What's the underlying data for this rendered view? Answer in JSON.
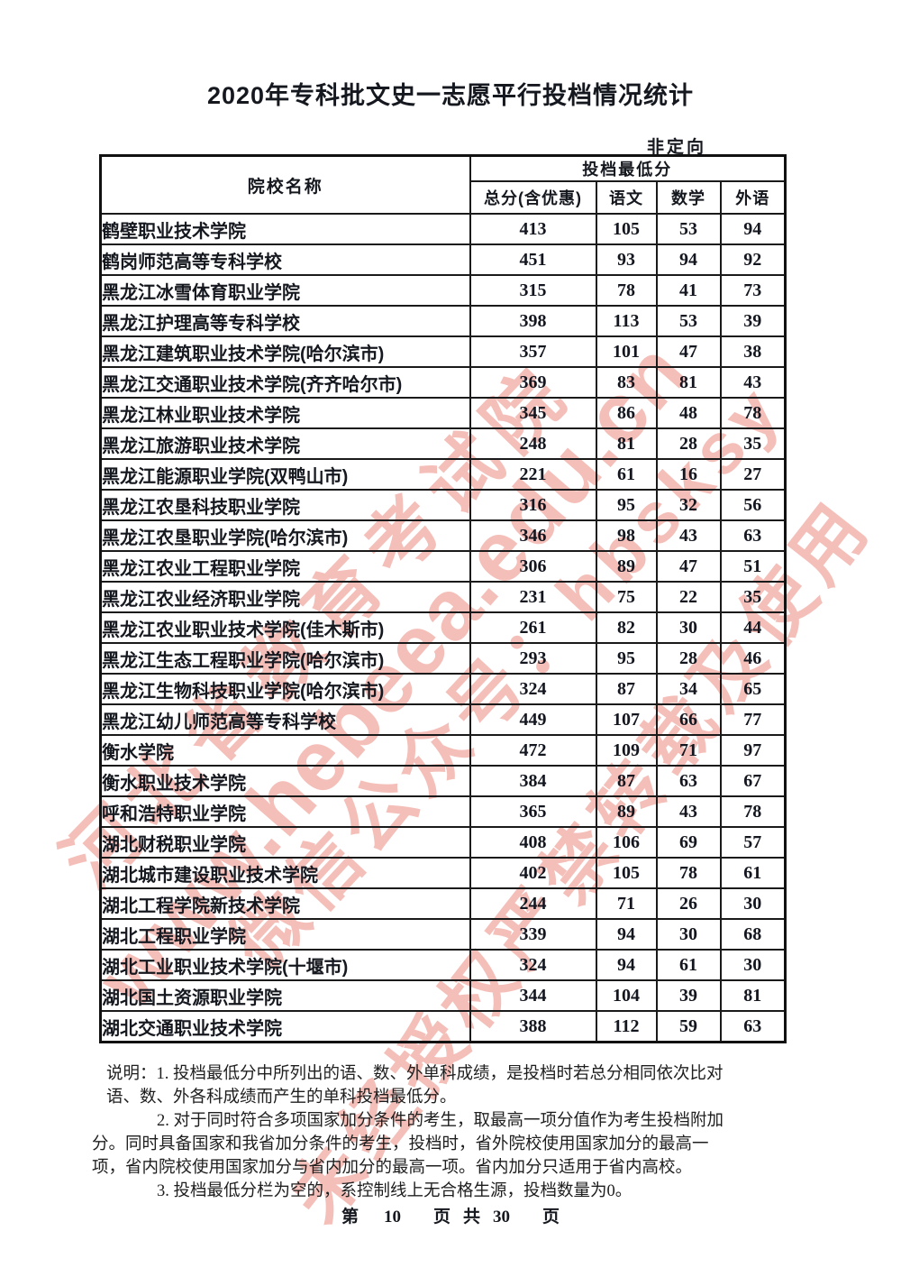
{
  "page": {
    "title": "2020年专科批文史一志愿平行投档情况统计",
    "orientation_label": "非定向"
  },
  "table": {
    "name_header": "院校名称",
    "group_header": "投档最低分",
    "sub_headers": [
      "总分(含优惠)",
      "语文",
      "数学",
      "外语"
    ],
    "rows": [
      {
        "name": "鹤壁职业技术学院",
        "total": "413",
        "chinese": "105",
        "math": "53",
        "foreign": "94"
      },
      {
        "name": "鹤岗师范高等专科学校",
        "total": "451",
        "chinese": "93",
        "math": "94",
        "foreign": "92"
      },
      {
        "name": "黑龙江冰雪体育职业学院",
        "total": "315",
        "chinese": "78",
        "math": "41",
        "foreign": "73"
      },
      {
        "name": "黑龙江护理高等专科学校",
        "total": "398",
        "chinese": "113",
        "math": "53",
        "foreign": "39"
      },
      {
        "name": "黑龙江建筑职业技术学院(哈尔滨市)",
        "total": "357",
        "chinese": "101",
        "math": "47",
        "foreign": "38"
      },
      {
        "name": "黑龙江交通职业技术学院(齐齐哈尔市)",
        "total": "369",
        "chinese": "83",
        "math": "81",
        "foreign": "43"
      },
      {
        "name": "黑龙江林业职业技术学院",
        "total": "345",
        "chinese": "86",
        "math": "48",
        "foreign": "78"
      },
      {
        "name": "黑龙江旅游职业技术学院",
        "total": "248",
        "chinese": "81",
        "math": "28",
        "foreign": "35"
      },
      {
        "name": "黑龙江能源职业学院(双鸭山市)",
        "total": "221",
        "chinese": "61",
        "math": "16",
        "foreign": "27"
      },
      {
        "name": "黑龙江农垦科技职业学院",
        "total": "316",
        "chinese": "95",
        "math": "32",
        "foreign": "56"
      },
      {
        "name": "黑龙江农垦职业学院(哈尔滨市)",
        "total": "346",
        "chinese": "98",
        "math": "43",
        "foreign": "63"
      },
      {
        "name": "黑龙江农业工程职业学院",
        "total": "306",
        "chinese": "89",
        "math": "47",
        "foreign": "51"
      },
      {
        "name": "黑龙江农业经济职业学院",
        "total": "231",
        "chinese": "75",
        "math": "22",
        "foreign": "35"
      },
      {
        "name": "黑龙江农业职业技术学院(佳木斯市)",
        "total": "261",
        "chinese": "82",
        "math": "30",
        "foreign": "44"
      },
      {
        "name": "黑龙江生态工程职业学院(哈尔滨市)",
        "total": "293",
        "chinese": "95",
        "math": "28",
        "foreign": "46"
      },
      {
        "name": "黑龙江生物科技职业学院(哈尔滨市)",
        "total": "324",
        "chinese": "87",
        "math": "34",
        "foreign": "65"
      },
      {
        "name": "黑龙江幼儿师范高等专科学校",
        "total": "449",
        "chinese": "107",
        "math": "66",
        "foreign": "77"
      },
      {
        "name": "衡水学院",
        "total": "472",
        "chinese": "109",
        "math": "71",
        "foreign": "97"
      },
      {
        "name": "衡水职业技术学院",
        "total": "384",
        "chinese": "87",
        "math": "63",
        "foreign": "67"
      },
      {
        "name": "呼和浩特职业学院",
        "total": "365",
        "chinese": "89",
        "math": "43",
        "foreign": "78"
      },
      {
        "name": "湖北财税职业学院",
        "total": "408",
        "chinese": "106",
        "math": "69",
        "foreign": "57"
      },
      {
        "name": "湖北城市建设职业技术学院",
        "total": "402",
        "chinese": "105",
        "math": "78",
        "foreign": "61"
      },
      {
        "name": "湖北工程学院新技术学院",
        "total": "244",
        "chinese": "71",
        "math": "26",
        "foreign": "30"
      },
      {
        "name": "湖北工程职业学院",
        "total": "339",
        "chinese": "94",
        "math": "30",
        "foreign": "68"
      },
      {
        "name": "湖北工业职业技术学院(十堰市)",
        "total": "324",
        "chinese": "94",
        "math": "61",
        "foreign": "30"
      },
      {
        "name": "湖北国土资源职业学院",
        "total": "344",
        "chinese": "104",
        "math": "39",
        "foreign": "81"
      },
      {
        "name": "湖北交通职业技术学院",
        "total": "388",
        "chinese": "112",
        "math": "59",
        "foreign": "63"
      }
    ]
  },
  "notes": {
    "lines": [
      "说明：1. 投档最低分中所列出的语、数、外单科成绩，是投档时若总分相同依次比对",
      "语、数、外各科成绩而产生的单科投档最低分。",
      "2. 对于同时符合多项国家加分条件的考生，取最高一项分值作为考生投档附加",
      "分。同时具备国家和我省加分条件的考生，投档时，省外院校使用国家加分的最高一",
      "项，省内院校使用国家加分与省内加分的最高一项。省内加分只适用于省内高校。",
      "3. 投档最低分栏为空的，系控制线上无合格生源，投档数量为0。"
    ]
  },
  "footer": {
    "parts": [
      "第",
      "10",
      "页",
      "共",
      "30",
      "页"
    ]
  },
  "watermark": {
    "color": "#e45848",
    "lines": [
      "河北省教育考试院",
      "www.hebeea.edu.cn",
      "微信公众号：hbsksy",
      "未经授权严禁转载及使用"
    ]
  }
}
